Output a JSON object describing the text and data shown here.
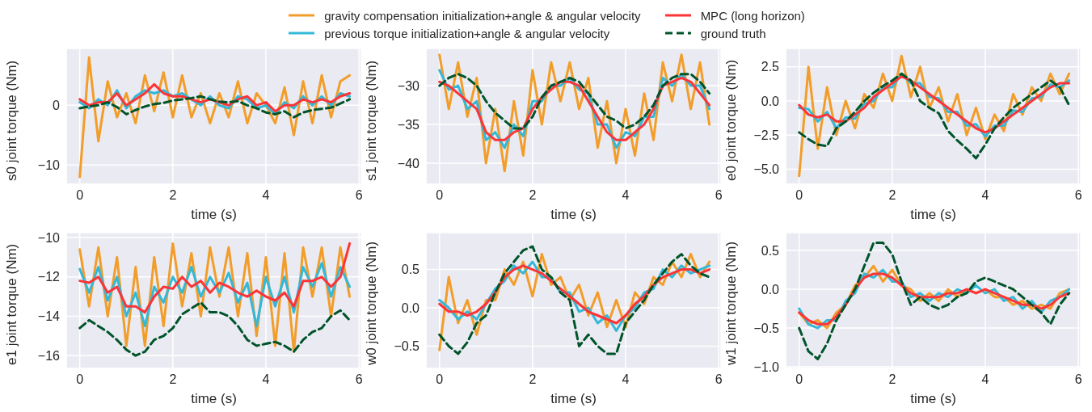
{
  "chart_data": [
    {
      "type": "line",
      "xlabel": "time (s)",
      "ylabel": "s0 joint torque (Nm)",
      "legend": "top",
      "grid": true,
      "marker": "none",
      "x": [
        0,
        0.2,
        0.4,
        0.6,
        0.8,
        1.0,
        1.2,
        1.4,
        1.6,
        1.8,
        2.0,
        2.2,
        2.4,
        2.6,
        2.8,
        3.0,
        3.2,
        3.4,
        3.6,
        3.8,
        4.0,
        4.2,
        4.4,
        4.6,
        4.8,
        5.0,
        5.2,
        5.4,
        5.6,
        5.8
      ],
      "xlim": [
        -0.29,
        6.05
      ],
      "xticks": [
        0,
        2,
        4,
        6
      ],
      "ylim": [
        -13.2,
        9.5
      ],
      "yticks": [
        {
          "value": -10,
          "label": "−10"
        },
        {
          "value": 0,
          "label": "0"
        }
      ],
      "series": [
        {
          "name": "gravity compensation initialization+angle & angular velocity",
          "color": "#f29d2a",
          "values": [
            -12,
            8,
            -6,
            4,
            -2,
            2,
            -3,
            5,
            -1,
            5.5,
            -2,
            5,
            -2,
            2,
            -3,
            2,
            -2,
            4,
            -3,
            2,
            0,
            -3,
            3,
            -5,
            4,
            -3,
            5,
            -2,
            4,
            5
          ]
        },
        {
          "name": "previous torque initialization+angle & angular velocity",
          "color": "#34b8d8",
          "values": [
            0.5,
            -0.5,
            1,
            0,
            2.5,
            -0.5,
            1.5,
            2.5,
            2,
            2.5,
            1.5,
            2,
            1,
            0,
            1.5,
            0,
            -0.5,
            1.5,
            1,
            -0.5,
            0,
            -1.5,
            0.5,
            -0.5,
            1.5,
            0,
            1.5,
            0,
            2,
            1.5
          ]
        },
        {
          "name": "MPC (long horizon)",
          "color": "#fd3436",
          "values": [
            1,
            0,
            0.5,
            0.5,
            2,
            0,
            1,
            2,
            3.5,
            2,
            1.5,
            1.5,
            1,
            0.5,
            1,
            0.5,
            0,
            1,
            1.5,
            0,
            0.5,
            -1,
            0,
            0,
            1,
            0.5,
            1,
            0.5,
            1.5,
            2
          ]
        },
        {
          "name": "ground truth",
          "color": "#00542a",
          "line_style": "dashed",
          "values": [
            -0.5,
            -0.2,
            0,
            0.5,
            -0.3,
            -1.5,
            -0.8,
            -0.2,
            0.2,
            0.4,
            0.8,
            1.0,
            1.2,
            1.5,
            1.0,
            0.6,
            0.5,
            0.7,
            0,
            -0.5,
            -1.2,
            -1.5,
            -1.0,
            -2.0,
            -1.2,
            -0.8,
            -0.6,
            -0.4,
            0.3,
            1.0
          ]
        }
      ]
    },
    {
      "type": "line",
      "xlabel": "time (s)",
      "ylabel": "s1 joint torque (Nm)",
      "grid": true,
      "marker": "none",
      "x": [
        0,
        0.2,
        0.4,
        0.6,
        0.8,
        1.0,
        1.2,
        1.4,
        1.6,
        1.8,
        2.0,
        2.2,
        2.4,
        2.6,
        2.8,
        3.0,
        3.2,
        3.4,
        3.6,
        3.8,
        4.0,
        4.2,
        4.4,
        4.6,
        4.8,
        5.0,
        5.2,
        5.4,
        5.6,
        5.8
      ],
      "xlim": [
        -0.29,
        6.05
      ],
      "xticks": [
        0,
        2,
        4,
        6
      ],
      "ylim": [
        -42.7,
        -25.2
      ],
      "yticks": [
        {
          "value": -40,
          "label": "−40"
        },
        {
          "value": -35,
          "label": "−35"
        },
        {
          "value": -30,
          "label": "−30"
        }
      ],
      "series": [
        {
          "color": "#f29d2a",
          "values": [
            -26,
            -33,
            -27,
            -34,
            -29,
            -40,
            -33,
            -41,
            -32,
            -39,
            -28,
            -35,
            -27,
            -32,
            -27,
            -33,
            -29,
            -38,
            -32,
            -40,
            -33,
            -39,
            -31,
            -37,
            -27,
            -32,
            -26,
            -33,
            -27,
            -35
          ]
        },
        {
          "color": "#34b8d8",
          "values": [
            -28,
            -30.5,
            -30,
            -33,
            -32,
            -37,
            -36,
            -38,
            -35,
            -36.5,
            -32,
            -32,
            -30,
            -30,
            -29,
            -30.5,
            -31,
            -35,
            -35,
            -38,
            -36,
            -36.5,
            -34,
            -34,
            -29,
            -30,
            -28.5,
            -30,
            -30,
            -33
          ]
        },
        {
          "color": "#fd3436",
          "values": [
            -29.5,
            -30,
            -31,
            -32,
            -33,
            -36,
            -37,
            -37,
            -36,
            -35.5,
            -33,
            -31.5,
            -30.5,
            -29.5,
            -29.5,
            -30,
            -32,
            -34,
            -36,
            -37,
            -37,
            -36,
            -35,
            -33,
            -30,
            -29.5,
            -29,
            -29.5,
            -31,
            -32.5
          ]
        },
        {
          "color": "#00542a",
          "line_style": "dashed",
          "values": [
            -30,
            -29,
            -28.5,
            -29,
            -30,
            -32,
            -33.5,
            -34.5,
            -35.5,
            -35.5,
            -34,
            -31.5,
            -30,
            -29.5,
            -29,
            -29.5,
            -31,
            -32.5,
            -34,
            -34.5,
            -35.5,
            -35,
            -34,
            -32.5,
            -30,
            -29,
            -28.5,
            -28.5,
            -29.5,
            -31
          ]
        }
      ]
    },
    {
      "type": "line",
      "xlabel": "time (s)",
      "ylabel": "e0 joint torque (Nm)",
      "grid": true,
      "marker": "none",
      "x": [
        0,
        0.2,
        0.4,
        0.6,
        0.8,
        1.0,
        1.2,
        1.4,
        1.6,
        1.8,
        2.0,
        2.2,
        2.4,
        2.6,
        2.8,
        3.0,
        3.2,
        3.4,
        3.6,
        3.8,
        4.0,
        4.2,
        4.4,
        4.6,
        4.8,
        5.0,
        5.2,
        5.4,
        5.6,
        5.8
      ],
      "xlim": [
        -0.29,
        6.05
      ],
      "xticks": [
        0,
        2,
        4,
        6
      ],
      "ylim": [
        -6.1,
        3.85
      ],
      "yticks": [
        {
          "value": -5,
          "label": "−5.0"
        },
        {
          "value": -2.5,
          "label": "−2.5"
        },
        {
          "value": 0,
          "label": "0.0"
        },
        {
          "value": 2.5,
          "label": "2.5"
        }
      ],
      "series": [
        {
          "color": "#f29d2a",
          "values": [
            -5.5,
            2.5,
            -3.5,
            1,
            -2.5,
            0,
            -2,
            0.5,
            -0.5,
            2,
            0,
            3.3,
            0.3,
            2.5,
            -0.5,
            1,
            -1.5,
            0.5,
            -2.5,
            -0.5,
            -2.8,
            -1,
            -2.2,
            0.5,
            -1,
            1,
            0,
            2,
            0.5,
            2
          ]
        },
        {
          "color": "#34b8d8",
          "values": [
            -0.5,
            -0.6,
            -1.5,
            -0.8,
            -2,
            -1.2,
            -1.3,
            -0.2,
            0,
            1,
            1,
            2,
            1.3,
            1.3,
            0.3,
            0.2,
            -0.8,
            -0.8,
            -1.8,
            -1.7,
            -2.6,
            -1.8,
            -1.8,
            -0.7,
            -0.8,
            0.2,
            0.3,
            1.2,
            1,
            1.5
          ]
        },
        {
          "color": "#fd3436",
          "values": [
            -0.3,
            -1,
            -1.2,
            -1,
            -1.5,
            -1.5,
            -1,
            -0.5,
            0.3,
            0.8,
            1.3,
            1.8,
            1.5,
            1,
            0.5,
            0,
            -0.5,
            -1,
            -1.5,
            -2,
            -2.3,
            -2,
            -1.5,
            -1,
            -0.5,
            0,
            0.5,
            1,
            1.3,
            1.3
          ]
        },
        {
          "color": "#00542a",
          "line_style": "dashed",
          "values": [
            -2.3,
            -2.8,
            -3.2,
            -3.3,
            -2,
            -1.5,
            -0.8,
            0,
            0.6,
            1.1,
            1.5,
            2.0,
            1.5,
            0,
            -0.5,
            -0.9,
            -2.2,
            -2.9,
            -3.5,
            -4.2,
            -3.2,
            -2.0,
            -1.2,
            -0.5,
            0,
            0.5,
            1.0,
            1.5,
            1.0,
            -0.3
          ]
        }
      ]
    },
    {
      "type": "line",
      "xlabel": "time (s)",
      "ylabel": "e1 joint torque (Nm)",
      "grid": true,
      "marker": "none",
      "x": [
        0,
        0.2,
        0.4,
        0.6,
        0.8,
        1.0,
        1.2,
        1.4,
        1.6,
        1.8,
        2.0,
        2.2,
        2.4,
        2.6,
        2.8,
        3.0,
        3.2,
        3.4,
        3.6,
        3.8,
        4.0,
        4.2,
        4.4,
        4.6,
        4.8,
        5.0,
        5.2,
        5.4,
        5.6,
        5.8
      ],
      "xlim": [
        -0.29,
        6.05
      ],
      "xticks": [
        0,
        2,
        4,
        6
      ],
      "ylim": [
        -16.65,
        -9.75
      ],
      "yticks": [
        {
          "value": -16,
          "label": "−16"
        },
        {
          "value": -14,
          "label": "−14"
        },
        {
          "value": -12,
          "label": "−12"
        },
        {
          "value": -10,
          "label": "−10"
        }
      ],
      "series": [
        {
          "color": "#f29d2a",
          "values": [
            -10.6,
            -13.5,
            -10.5,
            -14,
            -11,
            -15.5,
            -11.5,
            -15.5,
            -11,
            -14.5,
            -10.3,
            -13.5,
            -10.8,
            -14,
            -10.5,
            -13,
            -10.5,
            -14,
            -10.8,
            -15,
            -11,
            -15.5,
            -10.8,
            -15.8,
            -10.5,
            -13,
            -10.5,
            -14,
            -10.5,
            -13
          ]
        },
        {
          "color": "#34b8d8",
          "values": [
            -11.6,
            -12.8,
            -11.5,
            -13.2,
            -12,
            -14,
            -12.8,
            -14.5,
            -12.5,
            -13.3,
            -12,
            -12.8,
            -11.5,
            -13,
            -12,
            -12.8,
            -11.8,
            -13.3,
            -12.3,
            -14.5,
            -12,
            -13.5,
            -12,
            -13.8,
            -11.5,
            -12.5,
            -11.3,
            -13,
            -11.5,
            -12.5
          ]
        },
        {
          "color": "#fd3436",
          "values": [
            -12.2,
            -12.3,
            -12,
            -12.8,
            -12.5,
            -13.5,
            -13.5,
            -13.8,
            -13,
            -12.5,
            -12.6,
            -12,
            -12.5,
            -12.2,
            -12.8,
            -12.3,
            -12.5,
            -12.8,
            -13,
            -12.7,
            -13,
            -13.2,
            -12.8,
            -13.5,
            -12.2,
            -12.2,
            -12,
            -12.5,
            -12,
            -10.3
          ]
        },
        {
          "color": "#00542a",
          "line_style": "dashed",
          "values": [
            -14.6,
            -14.2,
            -14.5,
            -14.8,
            -15.2,
            -15.7,
            -16,
            -15.8,
            -15.2,
            -15,
            -14.6,
            -13.9,
            -13.6,
            -13.3,
            -13.8,
            -13.8,
            -14,
            -14.5,
            -15.2,
            -15.5,
            -15.4,
            -15.3,
            -15.5,
            -15.8,
            -15.2,
            -14.8,
            -14.6,
            -14,
            -13.7,
            -14.2
          ]
        }
      ]
    },
    {
      "type": "line",
      "xlabel": "time (s)",
      "ylabel": "w0 joint torque (Nm)",
      "grid": true,
      "marker": "none",
      "x": [
        0,
        0.2,
        0.4,
        0.6,
        0.8,
        1.0,
        1.2,
        1.4,
        1.6,
        1.8,
        2.0,
        2.2,
        2.4,
        2.6,
        2.8,
        3.0,
        3.2,
        3.4,
        3.6,
        3.8,
        4.0,
        4.2,
        4.4,
        4.6,
        4.8,
        5.0,
        5.2,
        5.4,
        5.6,
        5.8
      ],
      "xlim": [
        -0.29,
        6.05
      ],
      "xticks": [
        0,
        2,
        4,
        6
      ],
      "ylim": [
        -0.79,
        0.98
      ],
      "yticks": [
        {
          "value": -0.5,
          "label": "−0.5"
        },
        {
          "value": 0,
          "label": "0.0"
        },
        {
          "value": 0.5,
          "label": "0.5"
        }
      ],
      "series": [
        {
          "color": "#f29d2a",
          "values": [
            -0.55,
            0.4,
            -0.2,
            0.1,
            -0.35,
            0.1,
            0.1,
            0.5,
            0.3,
            0.6,
            0.15,
            0.7,
            0.3,
            0.4,
            0.1,
            0.3,
            -0.1,
            0.2,
            -0.25,
            0.1,
            -0.25,
            0.2,
            0.05,
            0.4,
            0.3,
            0.6,
            0.4,
            0.7,
            0.4,
            0.6
          ]
        },
        {
          "color": "#34b8d8",
          "values": [
            0.1,
            0,
            -0.15,
            -0.05,
            -0.15,
            0.05,
            0.25,
            0.35,
            0.55,
            0.45,
            0.6,
            0.4,
            0.4,
            0.2,
            0.2,
            -0.05,
            0,
            -0.2,
            -0.1,
            -0.3,
            -0.1,
            0,
            0.2,
            0.25,
            0.5,
            0.4,
            0.55,
            0.45,
            0.5,
            0.55
          ]
        },
        {
          "color": "#fd3436",
          "values": [
            0.05,
            -0.05,
            -0.05,
            -0.1,
            -0.05,
            0.05,
            0.2,
            0.4,
            0.5,
            0.55,
            0.5,
            0.45,
            0.35,
            0.25,
            0.15,
            0.05,
            -0.05,
            -0.1,
            -0.15,
            -0.2,
            -0.1,
            0.05,
            0.15,
            0.3,
            0.4,
            0.45,
            0.5,
            0.5,
            0.45,
            0.5
          ]
        },
        {
          "color": "#00542a",
          "line_style": "dashed",
          "values": [
            -0.35,
            -0.5,
            -0.6,
            -0.45,
            -0.2,
            -0.1,
            0.2,
            0.45,
            0.6,
            0.75,
            0.8,
            0.5,
            0.4,
            0.2,
            0.1,
            -0.5,
            -0.35,
            -0.5,
            -0.6,
            -0.6,
            -0.2,
            -0.05,
            0.1,
            0.3,
            0.45,
            0.6,
            0.7,
            0.55,
            0.45,
            0.4
          ]
        }
      ]
    },
    {
      "type": "line",
      "xlabel": "time (s)",
      "ylabel": "w1 joint torque (Nm)",
      "grid": true,
      "marker": "none",
      "x": [
        0,
        0.2,
        0.4,
        0.6,
        0.8,
        1.0,
        1.2,
        1.4,
        1.6,
        1.8,
        2.0,
        2.2,
        2.4,
        2.6,
        2.8,
        3.0,
        3.2,
        3.4,
        3.6,
        3.8,
        4.0,
        4.2,
        4.4,
        4.6,
        4.8,
        5.0,
        5.2,
        5.4,
        5.6,
        5.8
      ],
      "xlim": [
        -0.29,
        6.05
      ],
      "xticks": [
        0,
        2,
        4,
        6
      ],
      "ylim": [
        -1.02,
        0.73
      ],
      "yticks": [
        {
          "value": -1,
          "label": "−1.0"
        },
        {
          "value": -0.5,
          "label": "−0.5"
        },
        {
          "value": 0,
          "label": "0.0"
        },
        {
          "value": 0.5,
          "label": "0.5"
        }
      ],
      "series": [
        {
          "color": "#f29d2a",
          "values": [
            -0.3,
            -0.45,
            -0.4,
            -0.5,
            -0.3,
            -0.2,
            0.05,
            0.15,
            0.3,
            0.1,
            0.25,
            0.05,
            0,
            -0.15,
            -0.05,
            -0.15,
            0,
            -0.1,
            0,
            -0.05,
            0,
            -0.1,
            -0.1,
            -0.2,
            -0.15,
            -0.25,
            -0.2,
            -0.25,
            -0.05,
            0
          ]
        },
        {
          "color": "#34b8d8",
          "values": [
            -0.25,
            -0.45,
            -0.5,
            -0.4,
            -0.4,
            -0.15,
            -0.05,
            0.2,
            0.15,
            0.25,
            0.1,
            0.1,
            -0.1,
            -0.05,
            -0.15,
            -0.05,
            -0.1,
            0,
            -0.05,
            0.05,
            -0.05,
            0,
            -0.15,
            -0.1,
            -0.25,
            -0.15,
            -0.3,
            -0.15,
            -0.1,
            0
          ]
        },
        {
          "color": "#fd3436",
          "values": [
            -0.3,
            -0.4,
            -0.45,
            -0.45,
            -0.35,
            -0.2,
            0,
            0.15,
            0.2,
            0.2,
            0.15,
            0.05,
            -0.05,
            -0.1,
            -0.1,
            -0.1,
            -0.05,
            -0.05,
            0,
            -0.05,
            0,
            -0.05,
            -0.1,
            -0.15,
            -0.2,
            -0.2,
            -0.25,
            -0.2,
            -0.1,
            -0.05
          ]
        },
        {
          "color": "#00542a",
          "line_style": "dashed",
          "values": [
            -0.5,
            -0.8,
            -0.9,
            -0.7,
            -0.4,
            -0.2,
            0,
            0.3,
            0.6,
            0.6,
            0.45,
            0.1,
            -0.2,
            -0.1,
            -0.2,
            -0.25,
            -0.2,
            -0.1,
            -0.05,
            0.1,
            0.15,
            0.1,
            0.05,
            0,
            -0.1,
            -0.2,
            -0.3,
            -0.45,
            -0.2,
            -0.05
          ]
        }
      ]
    }
  ]
}
